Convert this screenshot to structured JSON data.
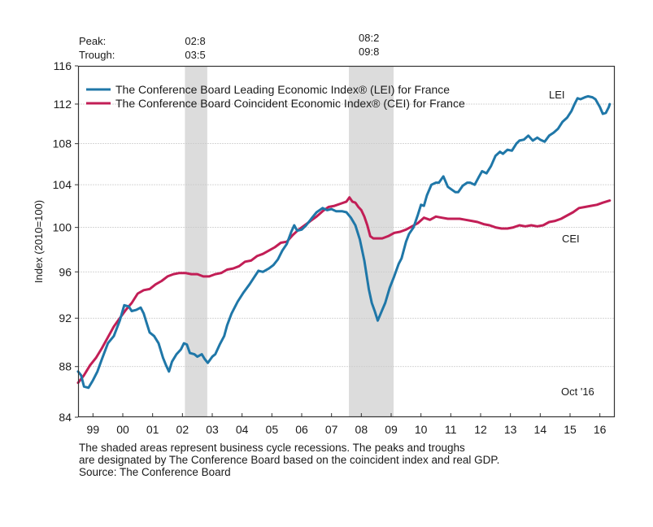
{
  "chart_data": {
    "type": "line",
    "title": "",
    "ylabel": "Index (2010=100)",
    "xlabel": "",
    "yscale": "log",
    "ylim": [
      84,
      116
    ],
    "xlim": [
      1999.0,
      2017.0
    ],
    "yticks": [
      84,
      88,
      92,
      96,
      100,
      104,
      108,
      112,
      116
    ],
    "xtick_labels": [
      "99",
      "00",
      "01",
      "02",
      "03",
      "04",
      "05",
      "06",
      "07",
      "08",
      "09",
      "10",
      "11",
      "12",
      "13",
      "14",
      "15",
      "16"
    ],
    "grid": true,
    "legend_position": "top-left",
    "recessions": [
      {
        "peak": "02:8",
        "trough": "03:5",
        "start": 2002.583,
        "end": 2003.333
      },
      {
        "peak": "08:2",
        "trough": "09:8",
        "start": 2008.083,
        "end": 2009.583
      }
    ],
    "peak_label": "Peak:",
    "trough_label": "Trough:",
    "annotations": {
      "lei": "LEI",
      "cei": "CEI",
      "latest": "Oct '16"
    },
    "series": [
      {
        "name": "The Conference Board Leading Economic Index® (LEI) for France",
        "short": "LEI",
        "color": "#1f77a8",
        "x": [
          1999.0,
          1999.1,
          1999.2,
          1999.35,
          1999.5,
          1999.65,
          1999.8,
          2000.0,
          2000.2,
          2000.4,
          2000.55,
          2000.7,
          2000.8,
          2000.95,
          2001.1,
          2001.2,
          2001.3,
          2001.4,
          2001.55,
          2001.7,
          2001.85,
          2001.95,
          2002.05,
          2002.15,
          2002.3,
          2002.45,
          2002.55,
          2002.65,
          2002.75,
          2002.9,
          2003.0,
          2003.15,
          2003.25,
          2003.35,
          2003.5,
          2003.6,
          2003.75,
          2003.9,
          2004.0,
          2004.15,
          2004.35,
          2004.55,
          2004.75,
          2004.9,
          2005.05,
          2005.2,
          2005.4,
          2005.55,
          2005.7,
          2005.85,
          2006.0,
          2006.15,
          2006.25,
          2006.35,
          2006.5,
          2006.65,
          2006.85,
          2007.0,
          2007.2,
          2007.35,
          2007.5,
          2007.65,
          2007.85,
          2008.0,
          2008.15,
          2008.3,
          2008.45,
          2008.6,
          2008.75,
          2008.85,
          2008.95,
          2009.05,
          2009.15,
          2009.3,
          2009.45,
          2009.6,
          2009.75,
          2009.85,
          2010.0,
          2010.1,
          2010.25,
          2010.4,
          2010.5,
          2010.6,
          2010.7,
          2010.85,
          2011.0,
          2011.1,
          2011.25,
          2011.4,
          2011.5,
          2011.65,
          2011.75,
          2011.9,
          2012.05,
          2012.15,
          2012.3,
          2012.45,
          2012.55,
          2012.7,
          2012.85,
          2013.0,
          2013.15,
          2013.25,
          2013.4,
          2013.55,
          2013.7,
          2013.8,
          2013.95,
          2014.1,
          2014.25,
          2014.4,
          2014.5,
          2014.65,
          2014.8,
          2014.95,
          2015.1,
          2015.25,
          2015.4,
          2015.55,
          2015.65,
          2015.75,
          2015.85,
          2016.0,
          2016.1,
          2016.25,
          2016.35,
          2016.5,
          2016.6,
          2016.7,
          2016.8,
          2016.83
        ],
        "values": [
          87.6,
          87.3,
          86.4,
          86.3,
          86.9,
          87.6,
          88.6,
          89.9,
          90.5,
          91.8,
          93.1,
          93.0,
          92.6,
          92.7,
          92.9,
          92.4,
          91.6,
          90.8,
          90.5,
          89.9,
          88.7,
          88.1,
          87.6,
          88.4,
          89.0,
          89.4,
          89.9,
          89.8,
          89.1,
          89.0,
          88.8,
          89.0,
          88.6,
          88.3,
          88.8,
          89.0,
          89.8,
          90.5,
          91.4,
          92.4,
          93.4,
          94.2,
          94.9,
          95.5,
          96.1,
          96.0,
          96.3,
          96.6,
          97.1,
          97.9,
          98.5,
          99.6,
          100.2,
          99.7,
          99.8,
          100.2,
          100.9,
          101.4,
          101.8,
          101.6,
          101.7,
          101.5,
          101.5,
          101.4,
          100.9,
          100.2,
          98.9,
          97.0,
          94.5,
          93.3,
          92.6,
          91.8,
          92.4,
          93.3,
          94.6,
          95.6,
          96.7,
          97.2,
          98.7,
          99.4,
          100.0,
          101.2,
          102.1,
          102.0,
          103.0,
          104.0,
          104.2,
          104.2,
          104.8,
          103.8,
          103.6,
          103.3,
          103.3,
          103.9,
          104.2,
          104.2,
          104.0,
          104.8,
          105.3,
          105.1,
          105.8,
          106.8,
          107.2,
          107.0,
          107.4,
          107.3,
          108.0,
          108.3,
          108.4,
          108.8,
          108.3,
          108.6,
          108.4,
          108.2,
          108.8,
          109.1,
          109.5,
          110.2,
          110.6,
          111.3,
          112.0,
          112.6,
          112.5,
          112.7,
          112.8,
          112.7,
          112.5,
          111.7,
          111.0,
          111.1,
          111.7,
          112.0
        ]
      },
      {
        "name": "The Conference Board Coincident Economic Index® (CEI) for France",
        "short": "CEI",
        "color": "#c21e56",
        "x": [
          1999.0,
          1999.2,
          1999.4,
          1999.6,
          1999.8,
          2000.0,
          2000.2,
          2000.4,
          2000.6,
          2000.8,
          2001.0,
          2001.2,
          2001.4,
          2001.6,
          2001.8,
          2002.0,
          2002.2,
          2002.4,
          2002.6,
          2002.8,
          2003.0,
          2003.2,
          2003.4,
          2003.6,
          2003.8,
          2004.0,
          2004.2,
          2004.4,
          2004.6,
          2004.8,
          2005.0,
          2005.2,
          2005.4,
          2005.6,
          2005.8,
          2006.0,
          2006.2,
          2006.4,
          2006.6,
          2006.8,
          2007.0,
          2007.2,
          2007.4,
          2007.6,
          2007.8,
          2008.0,
          2008.1,
          2008.2,
          2008.3,
          2008.4,
          2008.5,
          2008.6,
          2008.7,
          2008.8,
          2008.9,
          2009.0,
          2009.2,
          2009.4,
          2009.6,
          2009.8,
          2010.0,
          2010.2,
          2010.4,
          2010.6,
          2010.8,
          2011.0,
          2011.2,
          2011.4,
          2011.6,
          2011.8,
          2012.0,
          2012.2,
          2012.4,
          2012.6,
          2012.8,
          2013.0,
          2013.2,
          2013.4,
          2013.6,
          2013.8,
          2014.0,
          2014.2,
          2014.4,
          2014.6,
          2014.8,
          2015.0,
          2015.2,
          2015.4,
          2015.6,
          2015.8,
          2016.0,
          2016.2,
          2016.4,
          2016.6,
          2016.83
        ],
        "values": [
          86.7,
          87.3,
          88.1,
          88.7,
          89.5,
          90.4,
          91.3,
          92.0,
          92.7,
          93.3,
          94.1,
          94.4,
          94.5,
          94.9,
          95.2,
          95.6,
          95.8,
          95.9,
          95.9,
          95.8,
          95.8,
          95.6,
          95.6,
          95.8,
          95.9,
          96.2,
          96.3,
          96.5,
          96.9,
          97.0,
          97.4,
          97.6,
          97.9,
          98.2,
          98.6,
          98.7,
          99.3,
          99.8,
          100.2,
          100.6,
          101.0,
          101.5,
          101.9,
          102.0,
          102.2,
          102.4,
          102.8,
          102.4,
          102.3,
          101.9,
          101.6,
          101.0,
          100.2,
          99.2,
          99.0,
          99.0,
          99.0,
          99.2,
          99.5,
          99.6,
          99.8,
          100.1,
          100.4,
          100.9,
          100.7,
          101.0,
          100.9,
          100.8,
          100.8,
          100.8,
          100.7,
          100.6,
          100.5,
          100.3,
          100.2,
          100.0,
          99.9,
          99.9,
          100.0,
          100.2,
          100.1,
          100.2,
          100.1,
          100.2,
          100.5,
          100.6,
          100.8,
          101.1,
          101.4,
          101.8,
          101.9,
          102.0,
          102.1,
          102.3,
          102.5
        ]
      }
    ]
  },
  "footnote": {
    "line1": "The shaded areas represent business cycle recessions. The peaks and troughs",
    "line2": "are designated by The Conference Board based on the coincident index and real GDP.",
    "source": "Source: The Conference Board"
  }
}
